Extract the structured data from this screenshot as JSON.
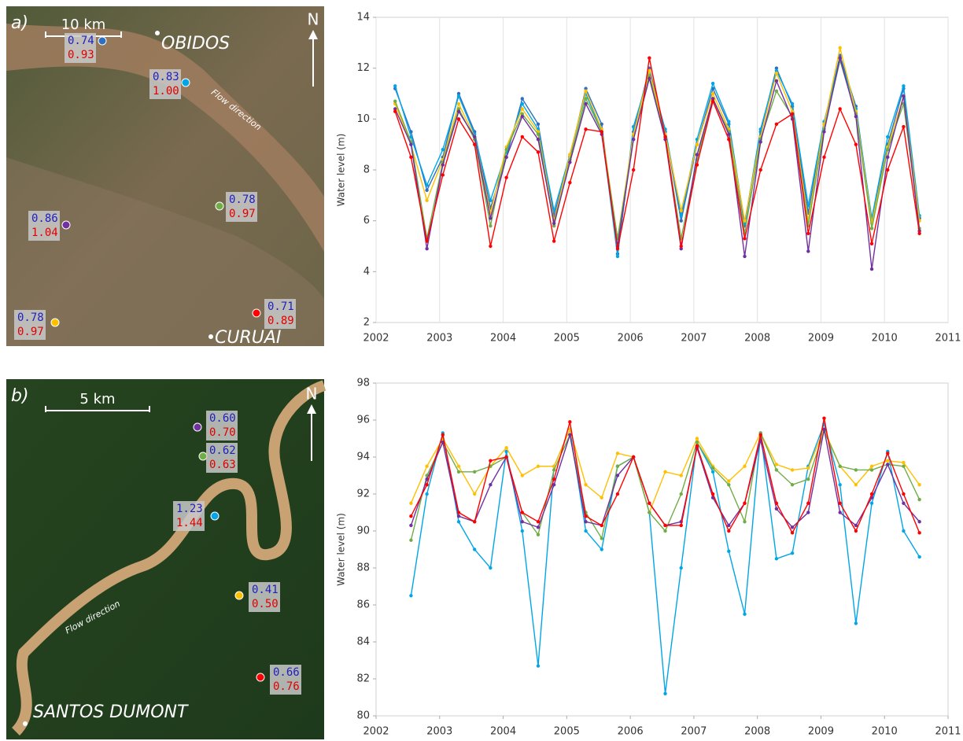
{
  "chart_data": [
    {
      "type": "line",
      "y_label": "Water level (m)",
      "xlim": [
        2002,
        2011
      ],
      "xticks": [
        2002,
        2003,
        2004,
        2005,
        2006,
        2007,
        2008,
        2009,
        2010,
        2011
      ],
      "ylim": [
        2,
        14
      ],
      "yticks": [
        2,
        4,
        6,
        8,
        10,
        12,
        14
      ],
      "grid": true,
      "x": [
        2002.3,
        2002.55,
        2002.8,
        2003.05,
        2003.3,
        2003.55,
        2003.8,
        2004.05,
        2004.3,
        2004.55,
        2004.8,
        2005.05,
        2005.3,
        2005.55,
        2005.8,
        2006.05,
        2006.3,
        2006.55,
        2006.8,
        2007.05,
        2007.3,
        2007.55,
        2007.8,
        2008.05,
        2008.3,
        2008.55,
        2008.8,
        2009.05,
        2009.3,
        2009.55,
        2009.8,
        2010.05,
        2010.3,
        2010.55
      ],
      "series": [
        {
          "color": "#2e6fc0",
          "values": [
            11.2,
            9.5,
            7.2,
            8.5,
            11.0,
            9.5,
            6.5,
            8.5,
            10.8,
            9.8,
            6.2,
            8.5,
            11.2,
            9.8,
            4.7,
            9.5,
            12.0,
            9.5,
            6.0,
            9.0,
            11.2,
            9.8,
            5.8,
            9.5,
            12.0,
            10.5,
            6.3,
            9.8,
            12.5,
            10.5,
            6.0,
            9.0,
            11.2,
            6.1
          ]
        },
        {
          "color": "#00a6e8",
          "values": [
            11.3,
            9.3,
            7.4,
            8.8,
            10.9,
            9.4,
            6.8,
            8.7,
            10.6,
            9.6,
            6.4,
            8.6,
            11.0,
            9.5,
            4.6,
            9.7,
            11.8,
            9.6,
            6.2,
            9.2,
            11.4,
            9.9,
            5.9,
            9.6,
            11.9,
            10.6,
            6.6,
            9.9,
            12.4,
            10.4,
            6.1,
            9.3,
            11.3,
            6.2
          ]
        },
        {
          "color": "#ffc000",
          "values": [
            10.6,
            9.0,
            6.8,
            8.4,
            10.6,
            9.3,
            6.3,
            8.9,
            10.4,
            9.5,
            6.0,
            8.6,
            11.1,
            9.6,
            5.3,
            9.4,
            11.9,
            9.4,
            6.4,
            9.0,
            11.0,
            9.6,
            6.0,
            9.3,
            11.8,
            10.3,
            6.0,
            9.8,
            12.8,
            10.3,
            5.9,
            8.9,
            10.9,
            6.0
          ]
        },
        {
          "color": "#70ad47",
          "values": [
            10.7,
            9.1,
            5.3,
            8.3,
            10.4,
            9.2,
            5.8,
            8.8,
            10.2,
            9.4,
            5.8,
            8.4,
            10.8,
            9.5,
            5.3,
            9.2,
            11.7,
            9.3,
            5.3,
            8.4,
            10.8,
            9.5,
            5.5,
            9.2,
            11.1,
            10.1,
            5.8,
            9.6,
            12.3,
            10.2,
            5.7,
            8.8,
            10.6,
            5.7
          ]
        },
        {
          "color": "#7030a0",
          "values": [
            10.4,
            9.0,
            4.9,
            8.2,
            10.3,
            9.3,
            6.1,
            8.5,
            10.1,
            9.2,
            5.9,
            8.3,
            10.6,
            9.4,
            5.0,
            9.2,
            11.6,
            9.2,
            4.9,
            8.6,
            10.8,
            9.4,
            4.6,
            9.1,
            11.5,
            10.0,
            4.8,
            9.5,
            12.4,
            10.1,
            4.1,
            8.5,
            10.9,
            5.6
          ]
        },
        {
          "color": "#ff0000",
          "values": [
            10.3,
            8.5,
            5.2,
            7.8,
            10.0,
            9.0,
            5.0,
            7.7,
            9.3,
            8.7,
            5.2,
            7.5,
            9.6,
            9.5,
            4.9,
            8.0,
            12.4,
            9.3,
            5.0,
            8.2,
            10.7,
            9.2,
            5.3,
            8.0,
            9.8,
            10.2,
            5.5,
            8.5,
            10.4,
            9.0,
            5.1,
            8.0,
            9.7,
            5.5
          ]
        }
      ]
    },
    {
      "type": "line",
      "y_label": "Water level (m)",
      "xlim": [
        2002,
        2011
      ],
      "xticks": [
        2002,
        2003,
        2004,
        2005,
        2006,
        2007,
        2008,
        2009,
        2010,
        2011
      ],
      "ylim": [
        80,
        98
      ],
      "yticks": [
        80,
        82,
        84,
        86,
        88,
        90,
        92,
        94,
        96,
        98
      ],
      "grid": false,
      "x": [
        2002.55,
        2002.8,
        2003.05,
        2003.3,
        2003.55,
        2003.8,
        2004.05,
        2004.3,
        2004.55,
        2004.8,
        2005.05,
        2005.3,
        2005.55,
        2005.8,
        2006.05,
        2006.3,
        2006.55,
        2006.8,
        2007.05,
        2007.3,
        2007.55,
        2007.8,
        2008.05,
        2008.3,
        2008.55,
        2008.8,
        2009.05,
        2009.3,
        2009.55,
        2009.8,
        2010.05,
        2010.3,
        2010.55
      ],
      "series": [
        {
          "color": "#00a6e8",
          "values": [
            86.5,
            92,
            95.3,
            90.5,
            89,
            88,
            94.3,
            90,
            82.7,
            93.5,
            95.5,
            90,
            89,
            93.5,
            94,
            91,
            81.2,
            88,
            94.8,
            93.2,
            88.9,
            85.5,
            95.3,
            88.5,
            88.8,
            93.5,
            95.8,
            92.5,
            85,
            91.5,
            94.3,
            90,
            88.6
          ]
        },
        {
          "color": "#ffc000",
          "values": [
            91.5,
            93.5,
            95,
            93.5,
            92,
            93.5,
            94.5,
            93,
            93.5,
            93.5,
            95.5,
            92.5,
            91.8,
            94.2,
            94,
            91,
            93.2,
            93,
            95,
            93.5,
            92.7,
            93.5,
            95.3,
            93.6,
            93.3,
            93.4,
            95.5,
            93.5,
            92.5,
            93.5,
            93.8,
            93.7,
            92.5
          ]
        },
        {
          "color": "#70ad47",
          "values": [
            89.5,
            93,
            94.8,
            93.2,
            93.2,
            93.5,
            94,
            91,
            89.8,
            93.3,
            95.2,
            91,
            89.6,
            93.5,
            94,
            91,
            90,
            92,
            94.8,
            93.4,
            92.5,
            90.5,
            95.3,
            93.3,
            92.5,
            92.8,
            95.4,
            93.5,
            93.3,
            93.3,
            93.6,
            93.5,
            91.7
          ]
        },
        {
          "color": "#7030a0",
          "values": [
            90.3,
            92.8,
            94.8,
            90.8,
            90.5,
            92.5,
            94,
            90.5,
            90.2,
            92.5,
            95.2,
            90.5,
            90.3,
            93,
            94,
            91.5,
            90.3,
            90.5,
            94.5,
            91.8,
            90.3,
            91.5,
            94.9,
            91.2,
            90.2,
            91,
            95.5,
            91,
            90.3,
            91.8,
            93.6,
            91.5,
            90.5
          ]
        },
        {
          "color": "#ff0000",
          "values": [
            90.8,
            92.5,
            95.2,
            91,
            90.5,
            93.8,
            94,
            91,
            90.5,
            92.8,
            95.9,
            90.8,
            90.3,
            92,
            94,
            91.5,
            90.3,
            90.3,
            94.6,
            92,
            90,
            91.5,
            95.2,
            91.5,
            89.9,
            91.5,
            96.1,
            91.5,
            90,
            92,
            94.2,
            92,
            89.9
          ]
        }
      ]
    }
  ],
  "maps": [
    {
      "panel": "a)",
      "scale": "10 km",
      "north": "N",
      "places": [
        "OBIDOS",
        "CURUAI"
      ],
      "flow": "Flow direction",
      "points": [
        {
          "color": "#2e6fc0",
          "top": "0.74",
          "bottom": "0.93"
        },
        {
          "color": "#00a6e8",
          "top": "0.83",
          "bottom": "1.00"
        },
        {
          "color": "#70ad47",
          "top": "0.78",
          "bottom": "0.97"
        },
        {
          "color": "#7030a0",
          "top": "0.86",
          "bottom": "1.04"
        },
        {
          "color": "#ffc000",
          "top": "0.78",
          "bottom": "0.97"
        },
        {
          "color": "#ff0000",
          "top": "0.71",
          "bottom": "0.89"
        }
      ]
    },
    {
      "panel": "b)",
      "scale": "5 km",
      "north": "N",
      "places": [
        "SANTOS DUMONT"
      ],
      "flow": "Flow direction",
      "points": [
        {
          "color": "#7030a0",
          "top": "0.60",
          "bottom": "0.70"
        },
        {
          "color": "#70ad47",
          "top": "0.62",
          "bottom": "0.63"
        },
        {
          "color": "#00a6e8",
          "top": "1.23",
          "bottom": "1.44"
        },
        {
          "color": "#ffc000",
          "top": "0.41",
          "bottom": "0.50"
        },
        {
          "color": "#ff0000",
          "top": "0.66",
          "bottom": "0.76"
        }
      ]
    }
  ]
}
